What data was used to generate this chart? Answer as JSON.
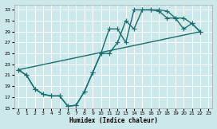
{
  "xlabel": "Humidex (Indice chaleur)",
  "xlim": [
    -0.5,
    23.5
  ],
  "ylim": [
    15,
    34
  ],
  "yticks": [
    15,
    17,
    19,
    21,
    23,
    25,
    27,
    29,
    31,
    33
  ],
  "xticks": [
    0,
    1,
    2,
    3,
    4,
    5,
    6,
    7,
    8,
    9,
    10,
    11,
    12,
    13,
    14,
    15,
    16,
    17,
    18,
    19,
    20,
    21,
    22,
    23
  ],
  "bg_color": "#cde8ea",
  "grid_color": "#ffffff",
  "line_color": "#1a6e6e",
  "curve1_x": [
    0,
    1,
    2,
    3,
    4,
    5,
    6,
    7,
    8,
    9,
    10,
    11,
    12,
    13,
    14,
    15,
    16,
    17,
    18,
    19,
    20,
    21,
    22
  ],
  "curve1_y": [
    22.0,
    21.0,
    18.5,
    17.5,
    17.2,
    17.2,
    15.3,
    15.5,
    18.0,
    21.5,
    25.0,
    29.5,
    29.5,
    27.0,
    33.0,
    33.0,
    33.0,
    32.8,
    31.5,
    31.5,
    29.5,
    30.5,
    29.0
  ],
  "curve2_x": [
    0,
    1,
    2,
    3,
    4,
    5,
    6,
    7,
    8,
    9,
    10,
    11,
    12,
    13,
    14,
    15,
    16,
    17,
    18,
    19,
    20,
    21,
    22
  ],
  "curve2_y": [
    22.0,
    21.0,
    18.5,
    17.5,
    17.2,
    17.2,
    15.3,
    15.5,
    18.0,
    21.5,
    25.0,
    25.0,
    27.0,
    31.0,
    29.5,
    33.0,
    33.0,
    33.0,
    32.8,
    31.5,
    31.5,
    30.5,
    29.0
  ],
  "line3_x": [
    0,
    22
  ],
  "line3_y": [
    22.0,
    29.0
  ],
  "line_width": 1.0,
  "marker_size": 4.0
}
